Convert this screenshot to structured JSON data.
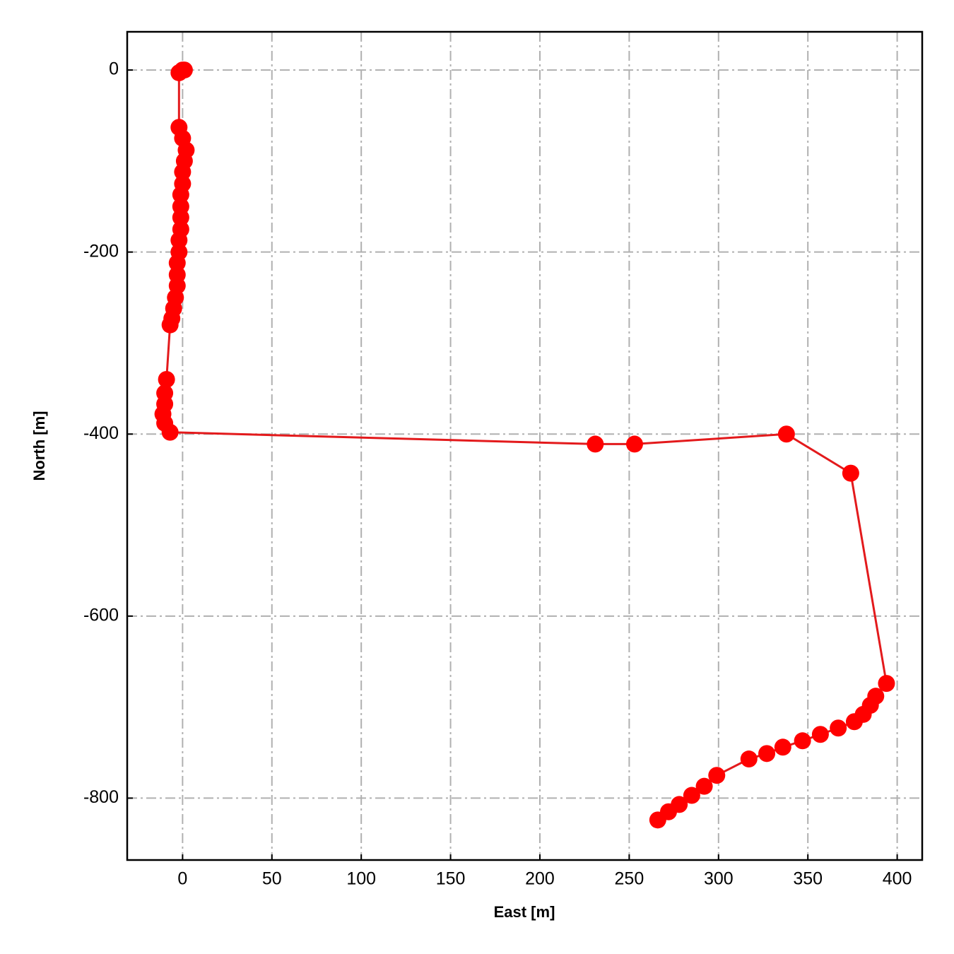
{
  "chart_data": {
    "type": "line",
    "xlabel": "East [m]",
    "ylabel": "North [m]",
    "x": [
      0,
      1,
      -2,
      -2,
      0,
      2,
      1,
      0,
      0,
      -1,
      -1,
      -1,
      -1,
      -2,
      -2,
      -3,
      -3,
      -3,
      -4,
      -5,
      -6,
      -7,
      -9,
      -10,
      -10,
      -11,
      -10,
      -7,
      231,
      253,
      338,
      374,
      394,
      388,
      385,
      381,
      376,
      367,
      357,
      347,
      336,
      327,
      317,
      299,
      292,
      285,
      278,
      272,
      266
    ],
    "series": [
      {
        "color": "#ff0000",
        "line_color": "#e31a1c",
        "values": [
          0,
          0,
          -3,
          -63,
          -75,
          -88,
          -100,
          -112,
          -125,
          -137,
          -150,
          -162,
          -175,
          -187,
          -200,
          -212,
          -225,
          -237,
          -250,
          -262,
          -273,
          -280,
          -340,
          -355,
          -367,
          -378,
          -388,
          -398,
          -411,
          -411,
          -400,
          -443,
          -674,
          -688,
          -698,
          -708,
          -716,
          -723,
          -730,
          -737,
          -744,
          -751,
          -757,
          -775,
          -787,
          -797,
          -807,
          -815,
          -824
        ]
      }
    ],
    "xlim": [
      -31,
      414
    ],
    "xticks": [
      0,
      50,
      100,
      150,
      200,
      250,
      300,
      350,
      400
    ],
    "ylim": [
      -868,
      42
    ],
    "yticks": [
      0,
      -200,
      -400,
      -600,
      -800
    ],
    "grid": true
  }
}
